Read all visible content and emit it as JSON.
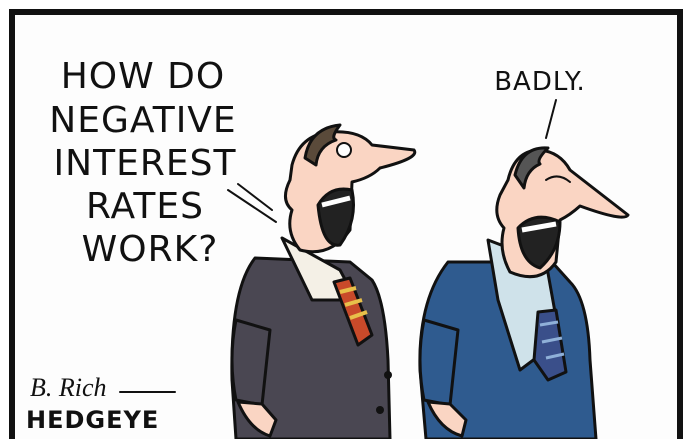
{
  "panel": {
    "speech_left": [
      "HOW DO",
      "NEGATIVE",
      "INTEREST",
      "RATES",
      "WORK?"
    ],
    "speech_right": "BADLY.",
    "signature": "B. Rich",
    "brand": "HEDGEYE"
  }
}
